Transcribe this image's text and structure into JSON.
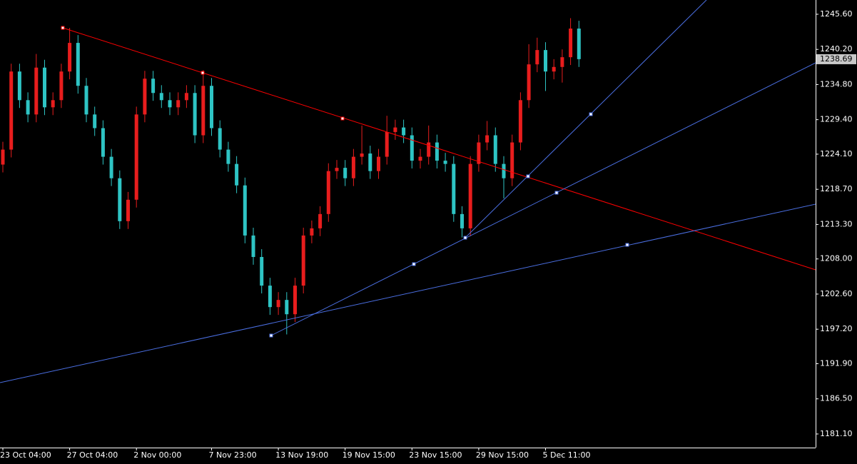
{
  "chart_data": {
    "type": "candlestick",
    "up_color": "#e81d1d",
    "down_color": "#2ec4c4",
    "ylim": [
      1179.01,
      1247.79
    ],
    "yticks": [
      {
        "value": 1245.6,
        "label": "1245.60"
      },
      {
        "value": 1240.2,
        "label": "1240.20"
      },
      {
        "value": 1234.8,
        "label": "1234.80"
      },
      {
        "value": 1229.4,
        "label": "1229.40"
      },
      {
        "value": 1224.1,
        "label": "1224.10"
      },
      {
        "value": 1218.7,
        "label": "1218.70"
      },
      {
        "value": 1213.3,
        "label": "1213.30"
      },
      {
        "value": 1208.0,
        "label": "1208.00"
      },
      {
        "value": 1202.6,
        "label": "1202.60"
      },
      {
        "value": 1197.2,
        "label": "1197.20"
      },
      {
        "value": 1191.9,
        "label": "1191.90"
      },
      {
        "value": 1186.5,
        "label": "1186.50"
      },
      {
        "value": 1181.1,
        "label": "1181.10"
      }
    ],
    "current_price": 1238.69,
    "xticks": [
      {
        "value": 0,
        "label": "23 Oct 04:00"
      },
      {
        "value": 8,
        "label": "27 Oct 04:00"
      },
      {
        "value": 16,
        "label": "2 Nov 00:00"
      },
      {
        "value": 25,
        "label": "7 Nov 23:00"
      },
      {
        "value": 33,
        "label": "13 Nov 19:00"
      },
      {
        "value": 41,
        "label": "19 Nov 15:00"
      },
      {
        "value": 49,
        "label": "23 Nov 15:00"
      },
      {
        "value": 57,
        "label": "29 Nov 15:00"
      },
      {
        "value": 65,
        "label": "5 Dec 11:00"
      }
    ],
    "ohlc": [
      [
        1222.5,
        1226.0,
        1221.3,
        1224.8
      ],
      [
        1224.8,
        1238.0,
        1223.6,
        1236.8
      ],
      [
        1236.8,
        1238.0,
        1231.2,
        1232.4
      ],
      [
        1232.4,
        1233.6,
        1229.0,
        1230.2
      ],
      [
        1230.2,
        1239.5,
        1229.0,
        1237.4
      ],
      [
        1237.4,
        1238.6,
        1230.1,
        1231.3
      ],
      [
        1231.3,
        1233.6,
        1230.1,
        1232.4
      ],
      [
        1232.4,
        1238.0,
        1231.2,
        1236.8
      ],
      [
        1236.8,
        1243.5,
        1235.6,
        1241.2
      ],
      [
        1241.2,
        1242.4,
        1233.4,
        1234.6
      ],
      [
        1234.6,
        1235.8,
        1229.0,
        1230.2
      ],
      [
        1230.2,
        1231.4,
        1226.9,
        1228.1
      ],
      [
        1228.1,
        1229.3,
        1222.5,
        1223.7
      ],
      [
        1223.7,
        1224.9,
        1219.2,
        1220.4
      ],
      [
        1220.4,
        1221.6,
        1212.6,
        1213.8
      ],
      [
        1213.8,
        1218.3,
        1212.6,
        1217.1
      ],
      [
        1217.1,
        1231.4,
        1215.9,
        1230.2
      ],
      [
        1230.2,
        1236.9,
        1229.0,
        1235.7
      ],
      [
        1235.7,
        1236.9,
        1232.3,
        1233.5
      ],
      [
        1233.5,
        1234.7,
        1231.2,
        1232.4
      ],
      [
        1232.4,
        1233.6,
        1230.1,
        1231.3
      ],
      [
        1231.3,
        1233.6,
        1230.1,
        1232.4
      ],
      [
        1232.4,
        1234.7,
        1231.2,
        1233.5
      ],
      [
        1233.5,
        1234.7,
        1225.8,
        1227.0
      ],
      [
        1227.0,
        1237.0,
        1225.8,
        1234.6
      ],
      [
        1234.6,
        1235.8,
        1226.9,
        1228.1
      ],
      [
        1228.1,
        1229.3,
        1223.6,
        1224.8
      ],
      [
        1224.8,
        1226.0,
        1221.4,
        1222.6
      ],
      [
        1222.6,
        1223.8,
        1218.1,
        1219.3
      ],
      [
        1219.3,
        1220.5,
        1210.4,
        1211.6
      ],
      [
        1211.6,
        1212.8,
        1207.1,
        1208.3
      ],
      [
        1208.3,
        1209.5,
        1202.7,
        1203.9
      ],
      [
        1203.9,
        1205.1,
        1199.4,
        1200.6
      ],
      [
        1200.6,
        1202.9,
        1199.4,
        1201.7
      ],
      [
        1201.7,
        1202.9,
        1196.4,
        1199.5
      ],
      [
        1199.5,
        1205.1,
        1198.3,
        1203.9
      ],
      [
        1203.9,
        1212.8,
        1202.7,
        1211.6
      ],
      [
        1211.6,
        1213.9,
        1210.4,
        1212.7
      ],
      [
        1212.7,
        1216.1,
        1211.5,
        1214.9
      ],
      [
        1214.9,
        1222.7,
        1213.7,
        1221.5
      ],
      [
        1221.5,
        1223.2,
        1220.3,
        1222.0
      ],
      [
        1222.0,
        1223.2,
        1219.2,
        1220.4
      ],
      [
        1220.4,
        1224.9,
        1219.2,
        1223.7
      ],
      [
        1223.7,
        1228.5,
        1222.5,
        1224.2
      ],
      [
        1224.2,
        1225.4,
        1220.3,
        1221.5
      ],
      [
        1221.5,
        1224.9,
        1220.3,
        1223.7
      ],
      [
        1223.7,
        1230.0,
        1222.5,
        1227.5
      ],
      [
        1227.5,
        1229.4,
        1226.3,
        1228.2
      ],
      [
        1228.2,
        1229.4,
        1225.8,
        1227.0
      ],
      [
        1227.0,
        1228.2,
        1221.9,
        1223.1
      ],
      [
        1223.1,
        1224.9,
        1221.9,
        1223.7
      ],
      [
        1223.7,
        1228.5,
        1222.5,
        1225.9
      ],
      [
        1225.9,
        1227.1,
        1221.9,
        1223.1
      ],
      [
        1223.1,
        1224.3,
        1221.4,
        1222.6
      ],
      [
        1222.6,
        1223.8,
        1213.7,
        1214.9
      ],
      [
        1214.9,
        1216.1,
        1211.3,
        1212.7
      ],
      [
        1212.7,
        1223.8,
        1211.5,
        1222.6
      ],
      [
        1222.6,
        1227.1,
        1221.4,
        1225.9
      ],
      [
        1225.9,
        1229.2,
        1224.7,
        1227.0
      ],
      [
        1227.0,
        1228.2,
        1221.4,
        1222.6
      ],
      [
        1222.6,
        1223.8,
        1217.3,
        1220.4
      ],
      [
        1220.4,
        1227.1,
        1219.2,
        1225.9
      ],
      [
        1225.9,
        1233.6,
        1224.7,
        1232.4
      ],
      [
        1232.4,
        1241.0,
        1231.2,
        1237.9
      ],
      [
        1237.9,
        1242.0,
        1236.7,
        1240.1
      ],
      [
        1240.1,
        1241.3,
        1233.8,
        1236.8
      ],
      [
        1236.8,
        1238.7,
        1235.6,
        1237.5
      ],
      [
        1237.5,
        1240.2,
        1235.1,
        1239.0
      ],
      [
        1239.0,
        1245.0,
        1237.8,
        1243.4
      ],
      [
        1243.4,
        1244.6,
        1237.5,
        1238.7
      ]
    ]
  }
}
